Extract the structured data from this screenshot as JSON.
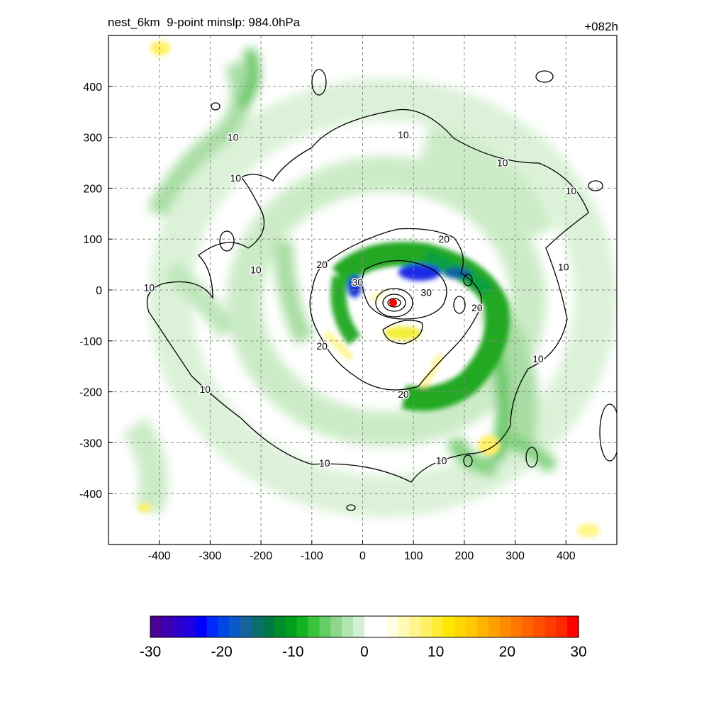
{
  "header": {
    "title_left": "nest_6km  9-point minslp: 984.0hPa",
    "title_right": "+082h"
  },
  "chart_data": {
    "type": "heatmap",
    "title": "nest_6km  9-point minslp: 984.0hPa",
    "forecast_hour": "+082h",
    "xlim": [
      -500,
      500
    ],
    "ylim": [
      -500,
      500
    ],
    "x_ticks": [
      -400,
      -300,
      -200,
      -100,
      0,
      100,
      200,
      300,
      400
    ],
    "y_ticks": [
      400,
      300,
      200,
      100,
      0,
      -100,
      -200,
      -300,
      -400
    ],
    "grid": true,
    "storm_center": {
      "x": 60,
      "y": -25,
      "color": "#ff0000"
    },
    "contour_levels": [
      10,
      20,
      30
    ],
    "contour_labels": [
      {
        "text": "10",
        "x": -255,
        "y": 300
      },
      {
        "text": "10",
        "x": -250,
        "y": 220
      },
      {
        "text": "10",
        "x": -210,
        "y": 40
      },
      {
        "text": "10",
        "x": -420,
        "y": 5
      },
      {
        "text": "10",
        "x": -310,
        "y": -195
      },
      {
        "text": "10",
        "x": -75,
        "y": -340
      },
      {
        "text": "10",
        "x": 80,
        "y": 305
      },
      {
        "text": "10",
        "x": 275,
        "y": 250
      },
      {
        "text": "10",
        "x": 410,
        "y": 195
      },
      {
        "text": "10",
        "x": 395,
        "y": 45
      },
      {
        "text": "10",
        "x": 345,
        "y": -135
      },
      {
        "text": "10",
        "x": 155,
        "y": -335
      },
      {
        "text": "20",
        "x": -80,
        "y": 50
      },
      {
        "text": "20",
        "x": 160,
        "y": 100
      },
      {
        "text": "20",
        "x": 225,
        "y": -35
      },
      {
        "text": "20",
        "x": -80,
        "y": -110
      },
      {
        "text": "20",
        "x": 80,
        "y": -205
      },
      {
        "text": "30",
        "x": -10,
        "y": 15
      },
      {
        "text": "30",
        "x": 125,
        "y": -5
      }
    ],
    "colorbar": {
      "min": -30,
      "max": 30,
      "tick_labels": [
        -30,
        -20,
        -10,
        0,
        10,
        20,
        30
      ],
      "colors": [
        "#4b0096",
        "#3c00b0",
        "#2d00c8",
        "#1e00e0",
        "#0000ff",
        "#0028ff",
        "#0046e6",
        "#0a5ac8",
        "#14649b",
        "#0a6e6e",
        "#007846",
        "#008c28",
        "#00a01e",
        "#14b41e",
        "#3cc33c",
        "#64cd64",
        "#8cd78c",
        "#b4e6b4",
        "#d2f0d2",
        "#ffffff",
        "#ffffff",
        "#ffffe0",
        "#fffab4",
        "#fff58c",
        "#fff064",
        "#ffeb32",
        "#ffe600",
        "#ffd700",
        "#ffc800",
        "#ffb400",
        "#ffa000",
        "#ff8c00",
        "#ff7800",
        "#ff6400",
        "#ff5000",
        "#ff3c00",
        "#ff2800",
        "#ff0000"
      ]
    }
  }
}
